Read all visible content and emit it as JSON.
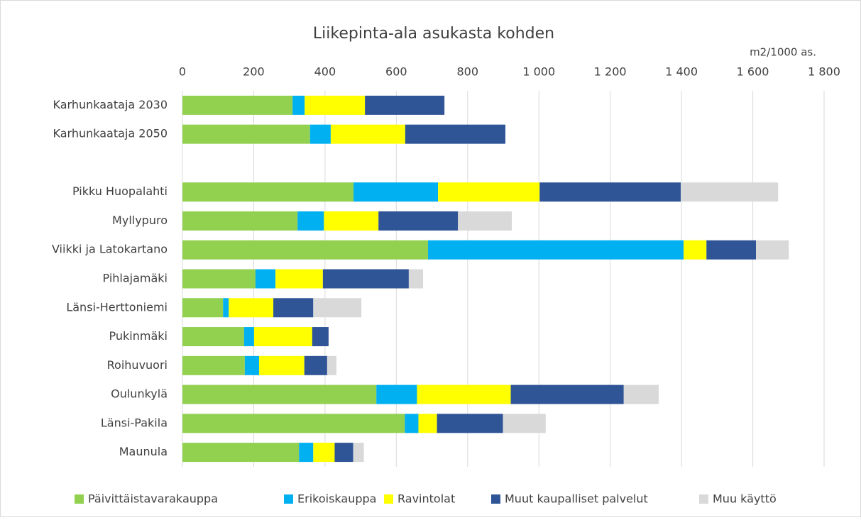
{
  "chart_data": {
    "type": "stacked_barh",
    "title": "Liikepinta-ala asukasta kohden",
    "x_label": "m2/1000 as.",
    "categories": [
      "Karhunkaataja 2030",
      "Karhunkaataja 2050",
      null,
      "Pikku Huopalahti",
      "Myllypuro",
      "Viikki ja Latokartano",
      "Pihlajamäki",
      "Länsi-Herttoniemi",
      "Pukinmäki",
      "Roihuvuori",
      "Oulunkylä",
      "Länsi-Pakila",
      "Maunula"
    ],
    "series": [
      {
        "name": "Päivittäistavarakauppa",
        "color": "#92d050",
        "values": [
          309,
          358,
          null,
          480,
          323,
          689,
          205,
          114,
          173,
          175,
          544,
          624,
          327
        ]
      },
      {
        "name": "Erikoiskauppa",
        "color": "#00b0f0",
        "values": [
          34,
          58,
          null,
          237,
          74,
          717,
          56,
          16,
          28,
          40,
          114,
          38,
          40
        ]
      },
      {
        "name": "Ravintolat",
        "color": "#ffff00",
        "values": [
          169,
          209,
          null,
          285,
          153,
          64,
          133,
          125,
          163,
          127,
          263,
          52,
          60
        ]
      },
      {
        "name": "Muut kaupalliset palvelut",
        "color": "#2f5597",
        "values": [
          223,
          281,
          null,
          396,
          223,
          139,
          241,
          112,
          46,
          64,
          317,
          185,
          52
        ]
      },
      {
        "name": "Muu käyttö",
        "color": "#d9d9d9",
        "values": [
          0,
          0,
          null,
          273,
          151,
          92,
          40,
          135,
          0,
          26,
          98,
          120,
          30
        ]
      }
    ],
    "xlim": [
      0,
      1800
    ],
    "xticks": [
      0,
      200,
      400,
      600,
      800,
      {
        "value": 1000,
        "label": "1 000"
      },
      {
        "value": 1200,
        "label": "1 200"
      },
      {
        "value": 1400,
        "label": "1 400"
      },
      {
        "value": 1600,
        "label": "1 600"
      },
      {
        "value": 1800,
        "label": "1 800"
      }
    ],
    "grid": true,
    "legend": "bottom"
  }
}
